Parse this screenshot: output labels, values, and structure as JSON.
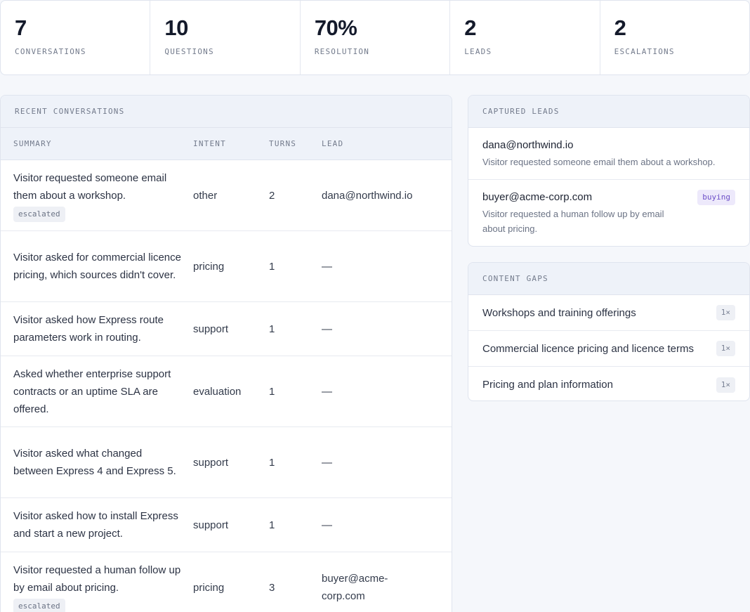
{
  "stats": [
    {
      "value": "7",
      "label": "CONVERSATIONS"
    },
    {
      "value": "10",
      "label": "QUESTIONS"
    },
    {
      "value": "70%",
      "label": "RESOLUTION"
    },
    {
      "value": "2",
      "label": "LEADS"
    },
    {
      "value": "2",
      "label": "ESCALATIONS"
    }
  ],
  "conversations": {
    "title": "RECENT CONVERSATIONS",
    "columns": {
      "summary": "SUMMARY",
      "intent": "INTENT",
      "turns": "TURNS",
      "lead": "LEAD"
    },
    "rows": [
      {
        "summary": "Visitor requested someone email them about a workshop.",
        "badge": "escalated",
        "intent": "other",
        "turns": "2",
        "lead": "dana@northwind.io"
      },
      {
        "summary": "Visitor asked for commercial licence pricing, which sources didn't cover.",
        "badge": "",
        "intent": "pricing",
        "turns": "1",
        "lead": "—"
      },
      {
        "summary": "Visitor asked how Express route parameters work in routing.",
        "badge": "",
        "intent": "support",
        "turns": "1",
        "lead": "—"
      },
      {
        "summary": "Asked whether enterprise support contracts or an uptime SLA are offered.",
        "badge": "",
        "intent": "evaluation",
        "turns": "1",
        "lead": "—"
      },
      {
        "summary": "Visitor asked what changed between Express 4 and Express 5.",
        "badge": "",
        "intent": "support",
        "turns": "1",
        "lead": "—"
      },
      {
        "summary": "Visitor asked how to install Express and start a new project.",
        "badge": "",
        "intent": "support",
        "turns": "1",
        "lead": "—"
      },
      {
        "summary": "Visitor requested a human follow up by email about pricing.",
        "badge": "escalated",
        "intent": "pricing",
        "turns": "3",
        "lead": "buyer@acme-corp.com"
      }
    ]
  },
  "leads": {
    "title": "CAPTURED LEADS",
    "items": [
      {
        "email": "dana@northwind.io",
        "summary": "Visitor requested someone email them about a workshop.",
        "tag": ""
      },
      {
        "email": "buyer@acme-corp.com",
        "summary": "Visitor requested a human follow up by email about pricing.",
        "tag": "buying"
      }
    ]
  },
  "gaps": {
    "title": "CONTENT GAPS",
    "items": [
      {
        "topic": "Workshops and training offerings",
        "count": "1×"
      },
      {
        "topic": "Commercial licence pricing and licence terms",
        "count": "1×"
      },
      {
        "topic": "Pricing and plan information",
        "count": "1×"
      }
    ]
  }
}
